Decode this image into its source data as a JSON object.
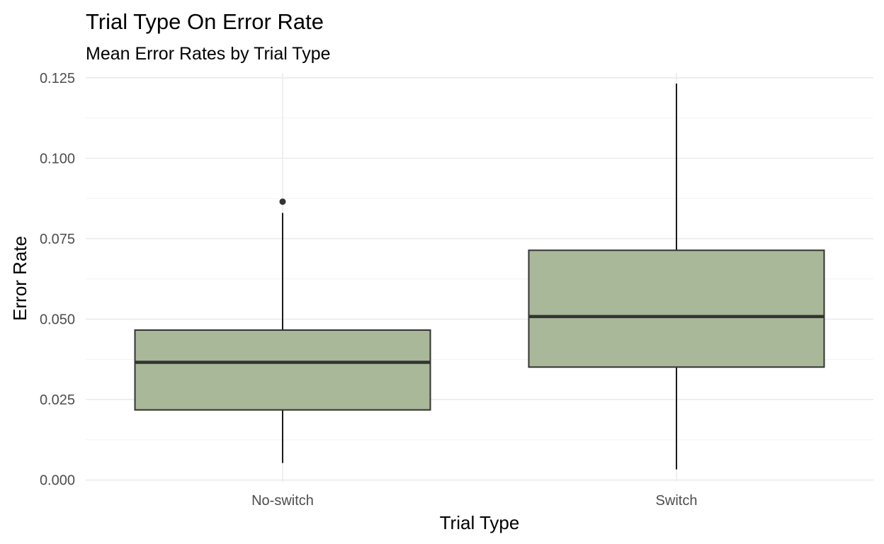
{
  "chart_data": {
    "type": "boxplot",
    "title": "Trial Type On Error Rate",
    "subtitle": "Mean Error Rates by Trial Type",
    "xlabel": "Trial Type",
    "ylabel": "Error Rate",
    "ylim": [
      -0.0005,
      0.1265
    ],
    "y_ticks": [
      0.0,
      0.025,
      0.05,
      0.075,
      0.1,
      0.125
    ],
    "y_tick_labels": [
      "0.000",
      "0.025",
      "0.050",
      "0.075",
      "0.100",
      "0.125"
    ],
    "categories": [
      "No-switch",
      "Switch"
    ],
    "grid": true,
    "fill_color": "#a9b898",
    "boxes": [
      {
        "category": "No-switch",
        "min": 0.0053,
        "q1": 0.0218,
        "median": 0.0366,
        "q3": 0.0466,
        "max": 0.083,
        "outliers": [
          0.0865
        ]
      },
      {
        "category": "Switch",
        "min": 0.0033,
        "q1": 0.0351,
        "median": 0.0508,
        "q3": 0.0714,
        "max": 0.1232,
        "outliers": []
      }
    ]
  }
}
